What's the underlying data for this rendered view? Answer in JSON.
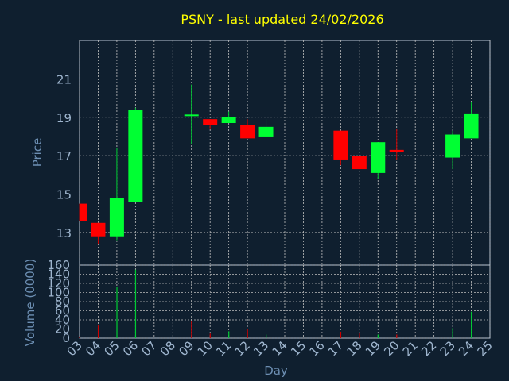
{
  "title": "PSNY - last updated 24/02/2026",
  "colors": {
    "background": "#0f1f2f",
    "title": "#ffff00",
    "axis_label": "#6d8fb3",
    "tick_label": "#9fb6cf",
    "axis": "#b8c6d6",
    "grid": "#c0c0c0",
    "up": "#00ff33",
    "down": "#ff0000",
    "wick_up": "#00cc33",
    "wick_down": "#cc0000"
  },
  "chart_data": [
    {
      "type": "candlestick",
      "title": "PSNY - last updated 24/02/2026",
      "ylabel": "Price",
      "ylim": [
        11.3,
        23.0
      ],
      "yticks": [
        "13",
        "15",
        "17",
        "19",
        "21"
      ],
      "grid": true,
      "candles": [
        {
          "x": 3,
          "open": 14.5,
          "high": 14.5,
          "low": 13.6,
          "close": 13.6
        },
        {
          "x": 4,
          "open": 13.5,
          "high": 13.5,
          "low": 12.4,
          "close": 12.8
        },
        {
          "x": 5,
          "open": 12.8,
          "high": 17.4,
          "low": 12.6,
          "close": 14.8
        },
        {
          "x": 6,
          "open": 14.6,
          "high": 19.5,
          "low": 14.6,
          "close": 19.4
        },
        {
          "x": 9,
          "open": 19.1,
          "high": 20.7,
          "low": 17.6,
          "close": 19.1
        },
        {
          "x": 10,
          "open": 18.9,
          "high": 18.9,
          "low": 18.4,
          "close": 18.6
        },
        {
          "x": 11,
          "open": 18.7,
          "high": 19.3,
          "low": 18.7,
          "close": 19.0
        },
        {
          "x": 12,
          "open": 18.6,
          "high": 18.9,
          "low": 17.9,
          "close": 17.9
        },
        {
          "x": 13,
          "open": 18.0,
          "high": 18.9,
          "low": 18.0,
          "close": 18.5
        },
        {
          "x": 17,
          "open": 18.3,
          "high": 18.3,
          "low": 16.5,
          "close": 16.8
        },
        {
          "x": 18,
          "open": 17.0,
          "high": 17.0,
          "low": 16.3,
          "close": 16.3
        },
        {
          "x": 19,
          "open": 16.1,
          "high": 17.7,
          "low": 15.8,
          "close": 17.7
        },
        {
          "x": 20,
          "open": 17.3,
          "high": 18.4,
          "low": 16.8,
          "close": 17.2
        },
        {
          "x": 23,
          "open": 16.9,
          "high": 18.3,
          "low": 16.3,
          "close": 18.1
        },
        {
          "x": 24,
          "open": 17.9,
          "high": 19.8,
          "low": 17.9,
          "close": 19.2
        }
      ]
    },
    {
      "type": "bar",
      "ylabel": "Volume (0000)",
      "xlabel": "Day",
      "ylim": [
        0,
        160
      ],
      "yticks": [
        "0",
        "20",
        "40",
        "60",
        "80",
        "100",
        "120",
        "140",
        "160"
      ],
      "xticks": [
        "03",
        "04",
        "05",
        "06",
        "07",
        "08",
        "09",
        "10",
        "11",
        "12",
        "13",
        "14",
        "15",
        "16",
        "17",
        "18",
        "19",
        "20",
        "21",
        "22",
        "23",
        "24",
        "25"
      ],
      "grid": true,
      "bars": [
        {
          "x": 3,
          "value": 3,
          "direction": "down"
        },
        {
          "x": 4,
          "value": 28,
          "direction": "down"
        },
        {
          "x": 5,
          "value": 113,
          "direction": "up"
        },
        {
          "x": 6,
          "value": 150,
          "direction": "up"
        },
        {
          "x": 9,
          "value": 38,
          "direction": "down"
        },
        {
          "x": 10,
          "value": 10,
          "direction": "down"
        },
        {
          "x": 11,
          "value": 15,
          "direction": "up"
        },
        {
          "x": 12,
          "value": 20,
          "direction": "down"
        },
        {
          "x": 13,
          "value": 8,
          "direction": "up"
        },
        {
          "x": 17,
          "value": 14,
          "direction": "down"
        },
        {
          "x": 18,
          "value": 12,
          "direction": "down"
        },
        {
          "x": 19,
          "value": 8,
          "direction": "up"
        },
        {
          "x": 20,
          "value": 8,
          "direction": "down"
        },
        {
          "x": 23,
          "value": 22,
          "direction": "up"
        },
        {
          "x": 24,
          "value": 58,
          "direction": "up"
        }
      ]
    }
  ]
}
